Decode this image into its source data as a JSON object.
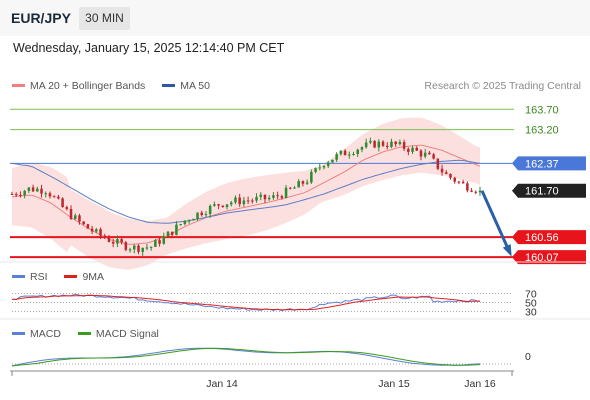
{
  "header": {
    "symbol": "EUR/JPY",
    "interval": "30 MIN",
    "datetime": "Wednesday, January 15, 2025 12:14:40 PM CET"
  },
  "main_legend": [
    {
      "label": "MA 20 + Bollinger Bands",
      "color": "#f08080"
    },
    {
      "label": "MA 50",
      "color": "#2d5a9e"
    }
  ],
  "credit": "Research © 2025 Trading Central",
  "rsi_legend": [
    {
      "label": "RSI",
      "color": "#5b7fd6"
    },
    {
      "label": "9MA",
      "color": "#e02020"
    }
  ],
  "macd_legend": [
    {
      "label": "MACD",
      "color": "#5b7fd6"
    },
    {
      "label": "MACD Signal",
      "color": "#3c9a1e"
    }
  ],
  "colors": {
    "resistance": "#7cbf4a",
    "support": "#e8141c",
    "ma50_level": "#4a78d8",
    "last_price": "#222222",
    "arrow": "#2a5fa6",
    "candle_up": "#2e8b2e",
    "candle_down": "#c0262d"
  },
  "chart_data": {
    "type": "candlestick",
    "instrument": "EUR/JPY",
    "timeframe": "30 MIN",
    "x_ticks": [
      "Jan 14",
      "Jan 15",
      "Jan 16"
    ],
    "ylim": [
      159.95,
      164.05
    ],
    "levels": [
      {
        "label": "163.70",
        "value": 163.7,
        "kind": "resistance"
      },
      {
        "label": "163.20",
        "value": 163.2,
        "kind": "resistance"
      },
      {
        "label": "162.37",
        "value": 162.37,
        "kind": "ma50"
      },
      {
        "label": "161.70",
        "value": 161.7,
        "kind": "last"
      },
      {
        "label": "160.56",
        "value": 160.56,
        "kind": "support"
      },
      {
        "label": "160.07",
        "value": 160.07,
        "kind": "support"
      }
    ],
    "anchors": [
      161.62,
      161.75,
      161.72,
      161.25,
      160.88,
      160.62,
      160.42,
      160.3,
      160.32,
      160.62,
      160.98,
      161.2,
      161.38,
      161.45,
      161.48,
      161.52,
      161.7,
      161.95,
      162.4,
      162.6,
      162.75,
      162.86,
      162.84,
      162.72,
      162.55,
      162.1,
      161.85,
      161.72
    ],
    "ma20_anchors": [
      161.55,
      161.6,
      161.4,
      161.05,
      160.75,
      160.5,
      160.38,
      160.42,
      160.6,
      160.85,
      161.05,
      161.2,
      161.3,
      161.4,
      161.52,
      161.65,
      161.9,
      162.15,
      162.45,
      162.65,
      162.78,
      162.82,
      162.7,
      162.5,
      162.3
    ],
    "ma50_anchors": [
      162.37,
      162.3,
      162.05,
      161.78,
      161.5,
      161.25,
      161.05,
      160.92,
      160.9,
      160.96,
      161.05,
      161.15,
      161.22,
      161.28,
      161.35,
      161.48,
      161.62,
      161.8,
      161.98,
      162.12,
      162.25,
      162.35,
      162.42,
      162.45,
      162.37
    ],
    "forecast": {
      "from": 161.7,
      "to": 160.07
    },
    "rsi": {
      "levels": [
        "70",
        "50",
        "30"
      ]
    },
    "macd": {
      "levels": [
        "0"
      ]
    }
  }
}
